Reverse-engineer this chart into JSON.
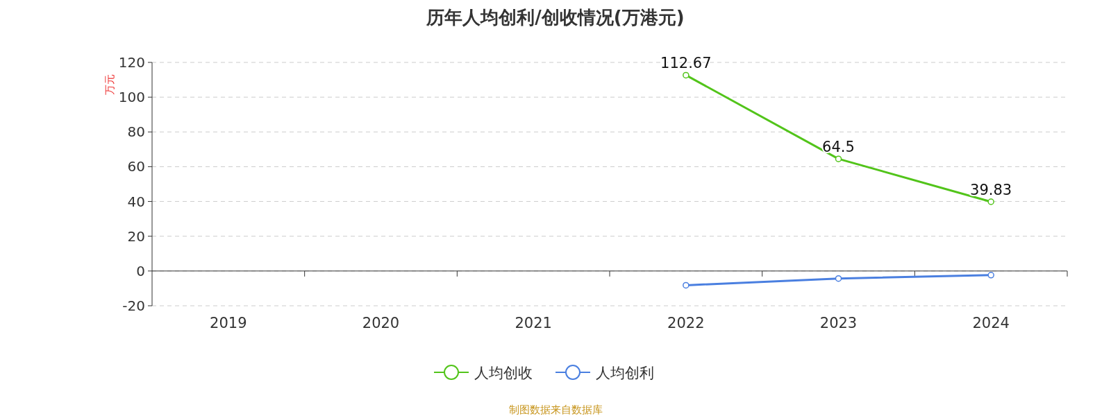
{
  "chart_data": {
    "type": "line",
    "title": "历年人均创利/创收情况(万港元)",
    "ylabel": "万元",
    "categories": [
      "2019",
      "2020",
      "2021",
      "2022",
      "2023",
      "2024"
    ],
    "series": [
      {
        "name": "人均创收",
        "color": "#52c41a",
        "values": [
          null,
          null,
          null,
          112.67,
          64.5,
          39.83
        ],
        "value_labels": [
          null,
          null,
          null,
          "112.67",
          "64.5",
          "39.83"
        ]
      },
      {
        "name": "人均创利",
        "color": "#4a7fe0",
        "values": [
          null,
          null,
          null,
          -8.2,
          -4.3,
          -2.4
        ]
      }
    ],
    "ylim": [
      -20,
      120
    ],
    "yticks": [
      -20,
      0,
      20,
      40,
      60,
      80,
      100,
      120
    ],
    "grid": "y",
    "legend": "bottom",
    "marker": "circle",
    "line_style": "solid",
    "annotations": [
      "制图数据来自数据库"
    ]
  }
}
